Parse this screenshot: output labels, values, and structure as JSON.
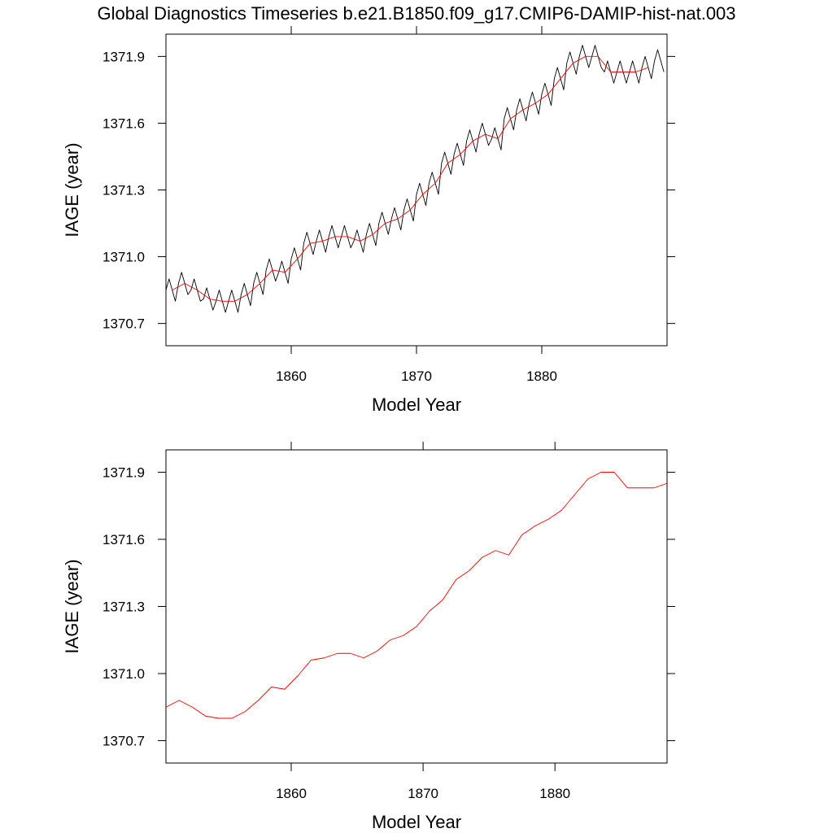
{
  "chart_data": [
    {
      "type": "line",
      "title": "Global Diagnostics Timeseries b.e21.B1850.f09_g17.CMIP6-DAMIP-hist-nat.003",
      "xlabel": "Model Year",
      "ylabel": "IAGE (year)",
      "xlim": [
        1850,
        1890
      ],
      "xticks": [
        1860,
        1870,
        1880
      ],
      "ylim": [
        1370.6,
        1372.0
      ],
      "yticks": [
        1370.7,
        {
          "value": 1371,
          "label": "1371.0"
        },
        1371.3,
        1371.6,
        1371.9
      ],
      "series": [
        {
          "color": "#000000",
          "x": [
            1850,
            1850.25,
            1850.5,
            1850.75,
            1851,
            1851.25,
            1851.5,
            1851.75,
            1852,
            1852.25,
            1852.5,
            1852.75,
            1853,
            1853.25,
            1853.5,
            1853.75,
            1854,
            1854.25,
            1854.5,
            1854.75,
            1855,
            1855.25,
            1855.5,
            1855.75,
            1856,
            1856.25,
            1856.5,
            1856.75,
            1857,
            1857.25,
            1857.5,
            1857.75,
            1858,
            1858.25,
            1858.5,
            1858.75,
            1859,
            1859.25,
            1859.5,
            1859.75,
            1860,
            1860.25,
            1860.5,
            1860.75,
            1861,
            1861.25,
            1861.5,
            1861.75,
            1862,
            1862.25,
            1862.5,
            1862.75,
            1863,
            1863.25,
            1863.5,
            1863.75,
            1864,
            1864.25,
            1864.5,
            1864.75,
            1865,
            1865.25,
            1865.5,
            1865.75,
            1866,
            1866.25,
            1866.5,
            1866.75,
            1867,
            1867.25,
            1867.5,
            1867.75,
            1868,
            1868.25,
            1868.5,
            1868.75,
            1869,
            1869.25,
            1869.5,
            1869.75,
            1870,
            1870.25,
            1870.5,
            1870.75,
            1871,
            1871.25,
            1871.5,
            1871.75,
            1872,
            1872.25,
            1872.5,
            1872.75,
            1873,
            1873.25,
            1873.5,
            1873.75,
            1874,
            1874.25,
            1874.5,
            1874.75,
            1875,
            1875.25,
            1875.5,
            1875.75,
            1876,
            1876.25,
            1876.5,
            1876.75,
            1877,
            1877.25,
            1877.5,
            1877.75,
            1878,
            1878.25,
            1878.5,
            1878.75,
            1879,
            1879.25,
            1879.5,
            1879.75,
            1880,
            1880.25,
            1880.5,
            1880.75,
            1881,
            1881.25,
            1881.5,
            1881.75,
            1882,
            1882.25,
            1882.5,
            1882.75,
            1883,
            1883.25,
            1883.5,
            1883.75,
            1884,
            1884.25,
            1884.5,
            1884.75,
            1885,
            1885.25,
            1885.5,
            1885.75,
            1886,
            1886.25,
            1886.5,
            1886.75,
            1887,
            1887.25,
            1887.5,
            1887.75,
            1888,
            1888.25,
            1888.5,
            1888.75,
            1889,
            1889.25,
            1889.5,
            1889.75
          ],
          "values": [
            1370.85,
            1370.9,
            1370.85,
            1370.8,
            1370.88,
            1370.93,
            1370.88,
            1370.83,
            1370.85,
            1370.9,
            1370.85,
            1370.8,
            1370.81,
            1370.86,
            1370.81,
            1370.76,
            1370.8,
            1370.85,
            1370.8,
            1370.75,
            1370.8,
            1370.85,
            1370.8,
            1370.75,
            1370.83,
            1370.88,
            1370.83,
            1370.78,
            1370.88,
            1370.93,
            1370.88,
            1370.83,
            1370.94,
            1370.99,
            1370.94,
            1370.89,
            1370.93,
            1370.98,
            1370.93,
            1370.88,
            1370.99,
            1371.04,
            1370.99,
            1370.94,
            1371.06,
            1371.11,
            1371.06,
            1371.01,
            1371.07,
            1371.12,
            1371.07,
            1371.02,
            1371.09,
            1371.14,
            1371.09,
            1371.04,
            1371.09,
            1371.14,
            1371.09,
            1371.04,
            1371.07,
            1371.12,
            1371.07,
            1371.02,
            1371.1,
            1371.15,
            1371.1,
            1371.05,
            1371.15,
            1371.2,
            1371.15,
            1371.1,
            1371.17,
            1371.22,
            1371.17,
            1371.12,
            1371.21,
            1371.26,
            1371.21,
            1371.16,
            1371.28,
            1371.33,
            1371.28,
            1371.23,
            1371.33,
            1371.38,
            1371.33,
            1371.28,
            1371.42,
            1371.47,
            1371.42,
            1371.37,
            1371.46,
            1371.51,
            1371.46,
            1371.41,
            1371.52,
            1371.57,
            1371.52,
            1371.47,
            1371.55,
            1371.6,
            1371.55,
            1371.5,
            1371.53,
            1371.58,
            1371.53,
            1371.48,
            1371.62,
            1371.67,
            1371.62,
            1371.57,
            1371.66,
            1371.71,
            1371.66,
            1371.61,
            1371.69,
            1371.74,
            1371.69,
            1371.64,
            1371.73,
            1371.78,
            1371.73,
            1371.68,
            1371.8,
            1371.85,
            1371.8,
            1371.75,
            1371.87,
            1371.92,
            1371.87,
            1371.82,
            1371.9,
            1371.95,
            1371.9,
            1371.85,
            1371.9,
            1371.95,
            1371.9,
            1371.85,
            1371.83,
            1371.88,
            1371.83,
            1371.78,
            1371.83,
            1371.88,
            1371.83,
            1371.78,
            1371.83,
            1371.88,
            1371.83,
            1371.78,
            1371.85,
            1371.9,
            1371.85,
            1371.8,
            1371.88,
            1371.93,
            1371.88,
            1371.83
          ]
        },
        {
          "color": "#ff0000",
          "x": [
            1850.5,
            1851.5,
            1852.5,
            1853.5,
            1854.5,
            1855.5,
            1856.5,
            1857.5,
            1858.5,
            1859.5,
            1860.5,
            1861.5,
            1862.5,
            1863.5,
            1864.5,
            1865.5,
            1866.5,
            1867.5,
            1868.5,
            1869.5,
            1870.5,
            1871.5,
            1872.5,
            1873.5,
            1874.5,
            1875.5,
            1876.5,
            1877.5,
            1878.5,
            1879.5,
            1880.5,
            1881.5,
            1882.5,
            1883.5,
            1884.5,
            1885.5,
            1886.5,
            1887.5,
            1888.5
          ],
          "values": [
            1370.85,
            1370.88,
            1370.85,
            1370.81,
            1370.8,
            1370.8,
            1370.83,
            1370.88,
            1370.94,
            1370.93,
            1370.99,
            1371.06,
            1371.07,
            1371.09,
            1371.09,
            1371.07,
            1371.1,
            1371.15,
            1371.17,
            1371.21,
            1371.28,
            1371.33,
            1371.42,
            1371.46,
            1371.52,
            1371.55,
            1371.53,
            1371.62,
            1371.66,
            1371.69,
            1371.73,
            1371.8,
            1371.87,
            1371.9,
            1371.9,
            1371.83,
            1371.83,
            1371.83,
            1371.85
          ]
        }
      ]
    },
    {
      "type": "line",
      "xlabel": "Model Year",
      "ylabel": "IAGE (year)",
      "xlim": [
        1850.5,
        1888.5
      ],
      "xticks": [
        1860,
        1870,
        1880
      ],
      "ylim": [
        1370.6,
        1372.0
      ],
      "yticks": [
        1370.7,
        {
          "value": 1371,
          "label": "1371.0"
        },
        1371.3,
        1371.6,
        1371.9
      ],
      "series": [
        {
          "color": "#ff0000",
          "x": [
            1850.5,
            1851.5,
            1852.5,
            1853.5,
            1854.5,
            1855.5,
            1856.5,
            1857.5,
            1858.5,
            1859.5,
            1860.5,
            1861.5,
            1862.5,
            1863.5,
            1864.5,
            1865.5,
            1866.5,
            1867.5,
            1868.5,
            1869.5,
            1870.5,
            1871.5,
            1872.5,
            1873.5,
            1874.5,
            1875.5,
            1876.5,
            1877.5,
            1878.5,
            1879.5,
            1880.5,
            1881.5,
            1882.5,
            1883.5,
            1884.5,
            1885.5,
            1886.5,
            1887.5,
            1888.5
          ],
          "values": [
            1370.85,
            1370.88,
            1370.85,
            1370.81,
            1370.8,
            1370.8,
            1370.83,
            1370.88,
            1370.94,
            1370.93,
            1370.99,
            1371.06,
            1371.07,
            1371.09,
            1371.09,
            1371.07,
            1371.1,
            1371.15,
            1371.17,
            1371.21,
            1371.28,
            1371.33,
            1371.42,
            1371.46,
            1371.52,
            1371.55,
            1371.53,
            1371.62,
            1371.66,
            1371.69,
            1371.73,
            1371.8,
            1371.87,
            1371.9,
            1371.9,
            1371.83,
            1371.83,
            1371.83,
            1371.85
          ]
        }
      ]
    }
  ]
}
